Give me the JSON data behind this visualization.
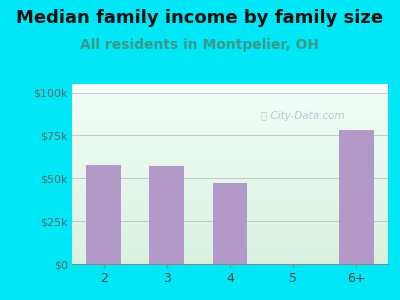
{
  "title": "Median family income by family size",
  "subtitle": "All residents in Montpelier, OH",
  "categories": [
    "2",
    "3",
    "4",
    "5",
    "6+"
  ],
  "values": [
    58000,
    57000,
    47000,
    0,
    78000
  ],
  "bar_color": "#b399c8",
  "title_fontsize": 13,
  "subtitle_fontsize": 10,
  "subtitle_color": "#3a9a8a",
  "title_color": "#111111",
  "background_outer": "#00e8f8",
  "yticks": [
    0,
    25000,
    50000,
    75000,
    100000
  ],
  "ytick_labels": [
    "$0",
    "$25k",
    "$50k",
    "$75k",
    "$100k"
  ],
  "ylim": [
    0,
    105000
  ],
  "watermark": "City-Data.com",
  "watermark_color": "#b0c0c8",
  "grid_color": "#bbbbbb",
  "tick_color": "#5a6a6a",
  "xlabel_color": "#444444"
}
